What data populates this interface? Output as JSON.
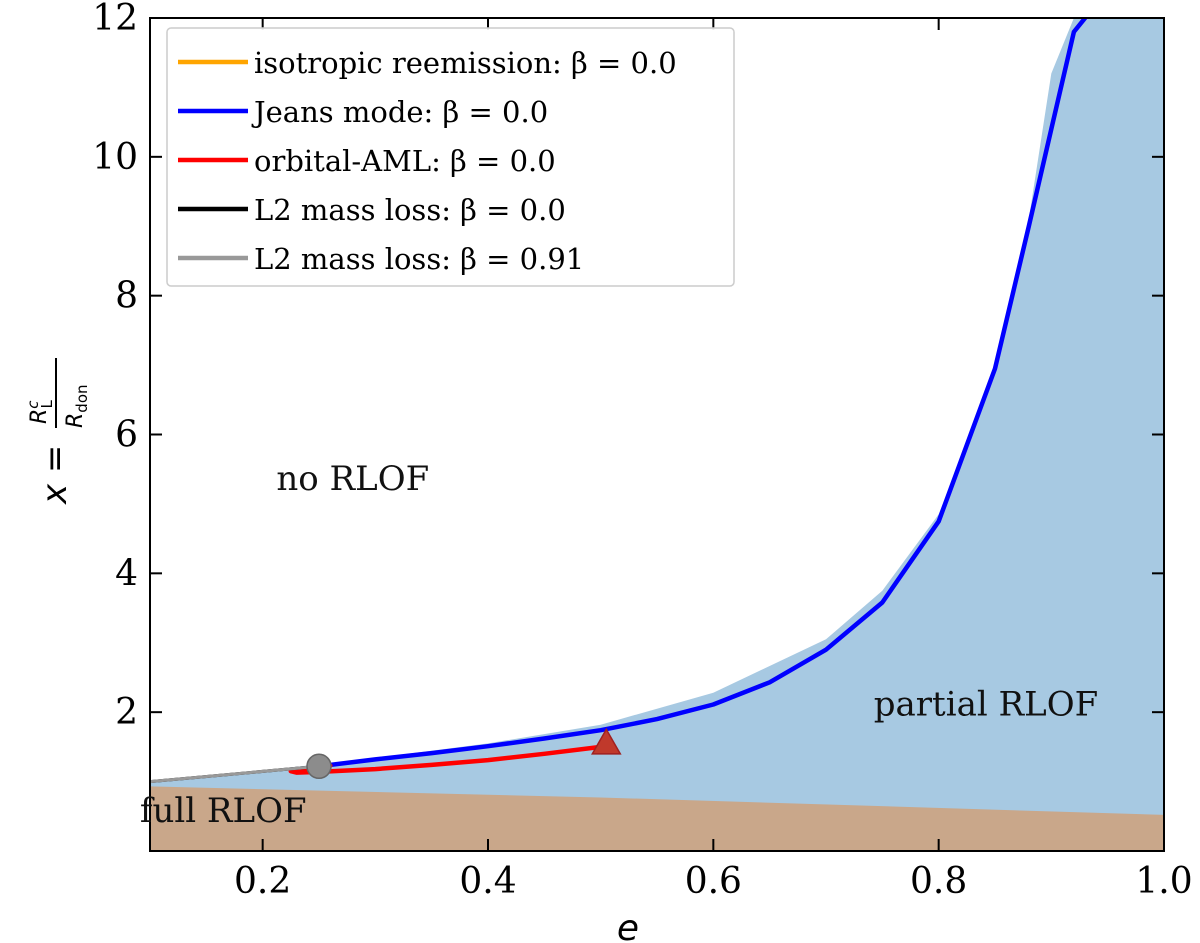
{
  "chart_data": {
    "type": "line",
    "xlabel": "e",
    "ylabel_prefix": "x = ",
    "ylabel_num_main": "R",
    "ylabel_num_sup": "c",
    "ylabel_num_sub": "L",
    "ylabel_den_main": "R",
    "ylabel_den_sub": "don",
    "xlim": [
      0.1,
      1.0
    ],
    "ylim": [
      0,
      12
    ],
    "xticks": [
      0.2,
      0.4,
      0.6,
      0.8,
      1.0
    ],
    "xtick_labels": [
      "0.2",
      "0.4",
      "0.6",
      "0.8",
      "1.0"
    ],
    "yticks": [
      2,
      4,
      6,
      8,
      10,
      12
    ],
    "ytick_labels": [
      "2",
      "4",
      "6",
      "8",
      "10",
      "12"
    ],
    "legend_position": "top-left",
    "colors": {
      "partial_region": "#a7c9e2",
      "full_region": "#c9a78a",
      "isotropic": "#ffa500",
      "jeans": "#0000ff",
      "orbital": "#ff0000",
      "l2_0": "#000000",
      "l2_091": "#999999",
      "marker_circle": "#8c8c8c",
      "marker_triangle": "#c0392b"
    },
    "regions": {
      "partial_upper": {
        "e": [
          0.1,
          0.2,
          0.3,
          0.4,
          0.5,
          0.6,
          0.7,
          0.75,
          0.8,
          0.85,
          0.88,
          0.9,
          0.92
        ],
        "x": [
          1.0,
          1.16,
          1.34,
          1.55,
          1.82,
          2.28,
          3.05,
          3.75,
          4.85,
          6.9,
          9.1,
          11.2,
          12.0
        ]
      },
      "full_upper": {
        "e": [
          0.1,
          0.5,
          1.0
        ],
        "x": [
          0.93,
          0.77,
          0.52
        ]
      }
    },
    "region_labels": {
      "no_rlof": "no RLOF",
      "partial_rlof": "partial RLOF",
      "full_rlof": "full RLOF"
    },
    "region_label_anchors": {
      "no_rlof": {
        "e": 0.28,
        "x": 5.2
      },
      "partial_rlof": {
        "e": 0.842,
        "x": 1.95
      },
      "full_rlof": {
        "e": 0.165,
        "x": 0.42
      }
    },
    "series": [
      {
        "name": "isotropic reemission: β = 0.0",
        "key": "isotropic",
        "e": [],
        "x": []
      },
      {
        "name": "Jeans mode: β = 0.0",
        "key": "jeans",
        "e": [
          0.25,
          0.3,
          0.35,
          0.4,
          0.45,
          0.5,
          0.55,
          0.6,
          0.65,
          0.7,
          0.75,
          0.8,
          0.85,
          0.88,
          0.9,
          0.92,
          0.93
        ],
        "x": [
          1.22,
          1.32,
          1.41,
          1.51,
          1.62,
          1.74,
          1.9,
          2.11,
          2.43,
          2.9,
          3.58,
          4.75,
          6.95,
          9.0,
          10.4,
          11.8,
          12.0
        ]
      },
      {
        "name": "orbital-AML: β = 0.0",
        "key": "orbital",
        "e": [
          0.5,
          0.45,
          0.4,
          0.35,
          0.3,
          0.25,
          0.23,
          0.225,
          0.24,
          0.26
        ],
        "x": [
          1.5,
          1.4,
          1.31,
          1.24,
          1.18,
          1.14,
          1.13,
          1.15,
          1.19,
          1.23
        ]
      },
      {
        "name": "L2 mass loss: β = 0.0",
        "key": "l2_0",
        "e": [
          0.1,
          0.25
        ],
        "x": [
          1.0,
          1.22
        ]
      },
      {
        "name": "L2 mass loss: β = 0.91",
        "key": "l2_091",
        "e": [
          0.1,
          0.25
        ],
        "x": [
          1.0,
          1.22
        ]
      }
    ],
    "markers": [
      {
        "shape": "circle",
        "e": 0.25,
        "x": 1.22
      },
      {
        "shape": "triangle",
        "e": 0.505,
        "x": 1.55
      }
    ]
  }
}
